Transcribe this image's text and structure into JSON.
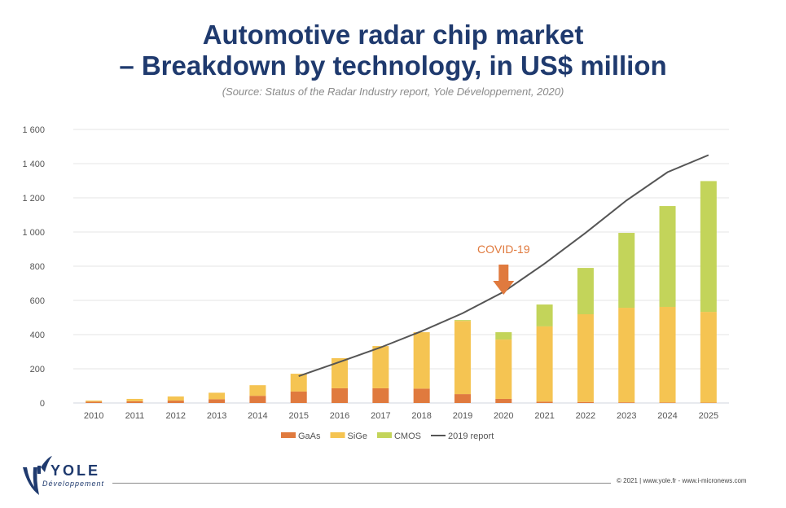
{
  "header": {
    "title_line1": "Automotive radar chip market",
    "title_line2": "– Breakdown by technology, in US$ million",
    "source": "(Source: Status of the Radar Industry report, Yole Développement, 2020)"
  },
  "chart_data": {
    "type": "bar",
    "stacked": true,
    "title": "Automotive radar chip market – Breakdown by technology, in US$ million",
    "xlabel": "",
    "ylabel": "",
    "ylim": [
      0,
      1600
    ],
    "yticks": [
      0,
      200,
      400,
      600,
      800,
      1000,
      1200,
      1400,
      1600
    ],
    "ytick_labels": [
      "0",
      "200",
      "400",
      "600",
      "800",
      "1 000",
      "1 200",
      "1 400",
      "1 600"
    ],
    "grid": true,
    "legend_position": "bottom",
    "categories": [
      "2010",
      "2011",
      "2012",
      "2013",
      "2014",
      "2015",
      "2016",
      "2017",
      "2018",
      "2019",
      "2020",
      "2021",
      "2022",
      "2023",
      "2024",
      "2025"
    ],
    "series": [
      {
        "name": "GaAs",
        "type": "bar",
        "color": "#e07a3e",
        "values": [
          8,
          10,
          14,
          22,
          42,
          67,
          86,
          86,
          84,
          52,
          24,
          8,
          6,
          4,
          3,
          2
        ]
      },
      {
        "name": "SiGe",
        "type": "bar",
        "color": "#f5c452",
        "values": [
          6,
          14,
          24,
          38,
          62,
          104,
          176,
          247,
          330,
          428,
          347,
          440,
          513,
          553,
          559,
          531
        ]
      },
      {
        "name": "CMOS",
        "type": "bar",
        "color": "#c3d45a",
        "values": [
          0,
          0,
          0,
          0,
          0,
          0,
          0,
          0,
          0,
          5,
          43,
          128,
          271,
          438,
          590,
          765
        ]
      },
      {
        "name": "2019 report",
        "type": "line",
        "color": "#555555",
        "x": [
          "2015",
          "2016",
          "2017",
          "2018",
          "2019",
          "2020",
          "2021",
          "2022",
          "2023",
          "2024",
          "2025"
        ],
        "values": [
          157,
          240,
          325,
          420,
          525,
          650,
          815,
          995,
          1185,
          1350,
          1450
        ]
      }
    ],
    "annotations": [
      {
        "text": "COVID-19",
        "category": "2020",
        "type": "arrow-down",
        "color": "#e07a3e"
      }
    ]
  },
  "footer": {
    "logo_text": "YOLE",
    "logo_subtext": "Développement",
    "copyright": "© 2021 | www.yole.fr - www.i-micronews.com"
  }
}
